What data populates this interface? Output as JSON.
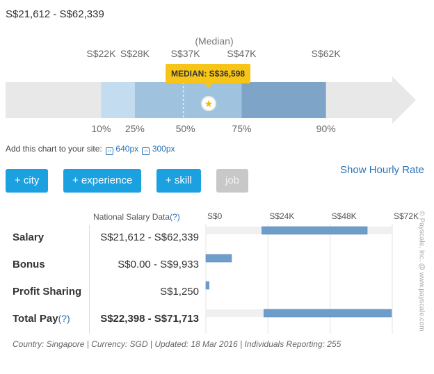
{
  "range_title": "S$21,612 - S$62,339",
  "median_caption": "(Median)",
  "median_badge": "MEDIAN: S$36,598",
  "embed": {
    "prefix": "Add this chart to your site:",
    "link_640": "640px",
    "link_300": "300px",
    "link_icon_glyph": "‹›"
  },
  "buttons": {
    "city": "+ city",
    "experience": "+ experience",
    "skill": "+ skill",
    "job": "job"
  },
  "hourly_link": "Show Hourly Rate",
  "table": {
    "header": "National Salary Data",
    "header_help": "(?)",
    "rows": [
      {
        "label": "Salary",
        "help": "",
        "value": "S$21,612 - S$62,339"
      },
      {
        "label": "Bonus",
        "help": "",
        "value": "S$0.00 - S$9,933"
      },
      {
        "label": "Profit Sharing",
        "help": "",
        "value": "S$1,250"
      },
      {
        "label": "Total Pay",
        "help": "(?)",
        "value": "S$22,398 - S$71,713"
      }
    ]
  },
  "footer_note": "Country: Singapore | Currency: SGD | Updated: 18 Mar 2016 | Individuals Reporting: 255",
  "copyright": "© Payscale, Inc. @ www.payscale.com",
  "colors": {
    "accent": "#1ba0e0",
    "median_badge": "#f7c518",
    "band_light": "#c4dcef",
    "band_mid": "#9fc3df",
    "band_dark": "#7ea5c7",
    "arrow": "#e8e8e8",
    "bar": "#6f9dca"
  },
  "chart_data": [
    {
      "type": "bar",
      "title": "",
      "description_note": "",
      "percentiles": [
        "10%",
        "25%",
        "50%",
        "75%",
        "90%"
      ],
      "top_labels": [
        "S$22K",
        "S$28K",
        "S$37K",
        "S$47K",
        "S$62K"
      ],
      "values": [
        22000,
        28000,
        37000,
        47000,
        62000
      ],
      "median_value": 36598,
      "median_label": "MEDIAN: S$36,598",
      "axis_domain": [
        5000,
        78000
      ]
    },
    {
      "type": "bar",
      "orientation": "horizontal",
      "categories": [
        "Salary",
        "Bonus",
        "Profit Sharing",
        "Total Pay"
      ],
      "ranges": [
        [
          21612,
          62339
        ],
        [
          0,
          9933
        ],
        [
          0,
          1250
        ],
        [
          22398,
          71713
        ]
      ],
      "tick_labels": [
        "S$0",
        "S$24K",
        "S$48K",
        "S$72K"
      ],
      "ticks": [
        0,
        24000,
        48000,
        72000
      ],
      "xlim": [
        0,
        72000
      ],
      "grid": true
    }
  ]
}
